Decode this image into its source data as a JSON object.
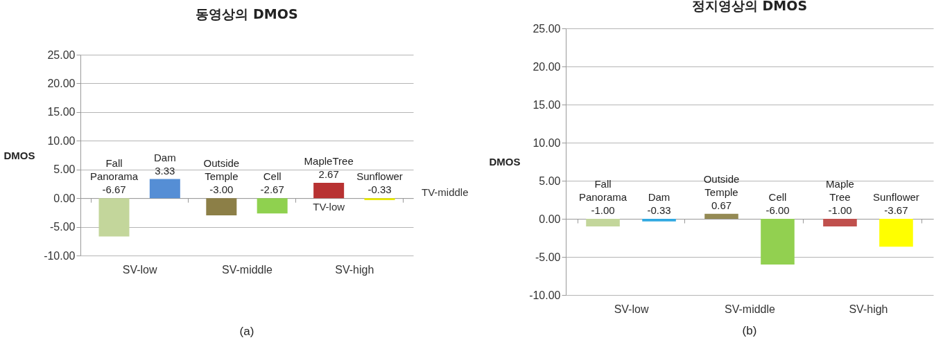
{
  "chart_data": [
    {
      "type": "bar",
      "title": "동영상의 DMOS",
      "ylabel": "DMOS",
      "categories": [
        "SV-low",
        "SV-middle",
        "SV-high"
      ],
      "series": [
        {
          "name": "TV-low",
          "colors": [
            "#c3d69b",
            "#8c7f47",
            "#b83232"
          ],
          "values": [
            -6.67,
            -3.0,
            2.67
          ],
          "value_labels": [
            "Fall Panorama -6.67",
            "Outside Temple -3.00",
            "MapleTree 2.67"
          ]
        },
        {
          "name": "TV-middle",
          "colors": [
            "#558ed5",
            "#8fd14f",
            "#e8e800"
          ],
          "values": [
            3.33,
            -2.67,
            -0.33
          ],
          "value_labels": [
            "Dam 3.33",
            "Cell -2.67",
            "Sunflower -0.33"
          ]
        }
      ],
      "ylim": [
        -10,
        25
      ],
      "yticks": [
        {
          "value": -10,
          "label": "-10.00"
        },
        {
          "value": -5,
          "label": "-5.00"
        },
        {
          "value": 0,
          "label": "0.00"
        },
        {
          "value": 5,
          "label": "5.00"
        },
        {
          "value": 10,
          "label": "10.00"
        },
        {
          "value": 15,
          "label": "15.00"
        },
        {
          "value": 20,
          "label": "20.00"
        },
        {
          "value": 25,
          "label": "25.00"
        }
      ],
      "grid": "y",
      "annotations": [
        "(a)"
      ]
    },
    {
      "type": "bar",
      "title": "정지영상의 DMOS",
      "ylabel": "DMOS",
      "categories": [
        "SV-low",
        "SV-middle",
        "SV-high"
      ],
      "series": [
        {
          "colors": [
            "#c3d69b",
            "#948a54",
            "#c0504d"
          ],
          "values": [
            -1.0,
            0.67,
            -1.0
          ],
          "value_labels": [
            "Fall Panorama -1.00",
            "Outside Temple 0.67",
            "Maple Tree -1.00"
          ]
        },
        {
          "colors": [
            "#31a9e1",
            "#92d050",
            "#ffff00"
          ],
          "values": [
            -0.33,
            -6.0,
            -3.67
          ],
          "value_labels": [
            "Dam -0.33",
            "Cell -6.00",
            "Sunflower -3.67"
          ]
        }
      ],
      "ylim": [
        -10,
        25
      ],
      "yticks": [
        {
          "value": -10,
          "label": "-10.00"
        },
        {
          "value": -5,
          "label": "-5.00"
        },
        {
          "value": 0,
          "label": "0.00"
        },
        {
          "value": 5,
          "label": "5.00"
        },
        {
          "value": 10,
          "label": "10.00"
        },
        {
          "value": 15,
          "label": "15.00"
        },
        {
          "value": 20,
          "label": "20.00"
        },
        {
          "value": 25,
          "label": "25.00"
        }
      ],
      "grid": "y",
      "annotations": [
        "(b)"
      ]
    }
  ]
}
